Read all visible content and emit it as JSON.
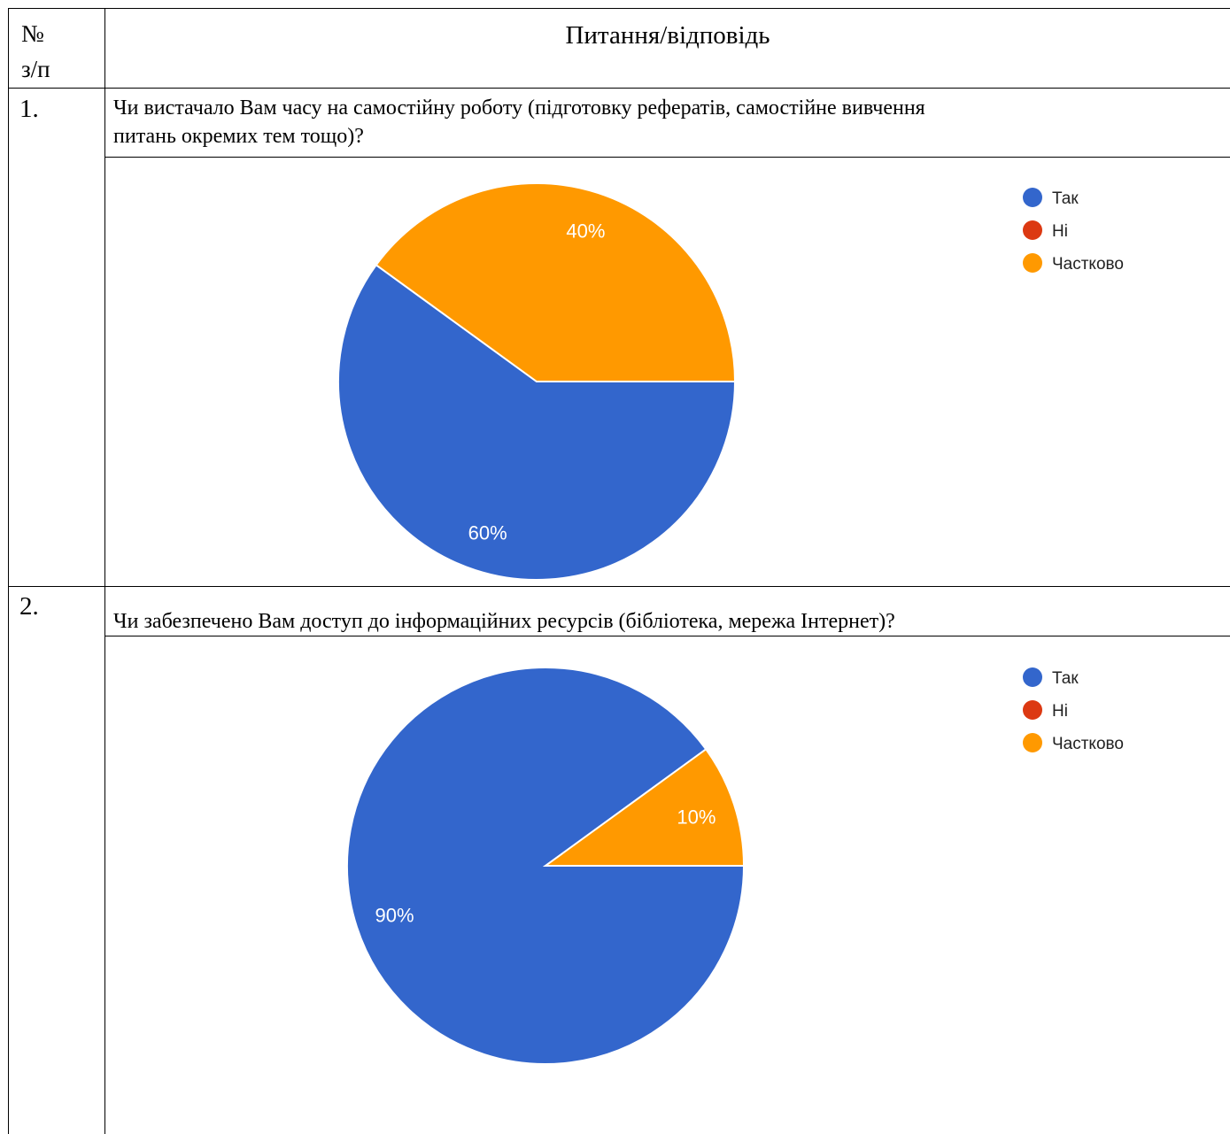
{
  "header": {
    "num_line1": "№",
    "num_line2": "з/п",
    "title": "Питання/відповідь"
  },
  "rows": [
    {
      "number": "1.",
      "question_line1": "Чи вистачало Вам часу на самостійну роботу (підготовку рефератів, самостійне вивчення",
      "question_line2": "питань окремих тем тощо)?"
    },
    {
      "number": "2.",
      "question_line1": "Чи забезпечено Вам доступ до інформаційних ресурсів (бібліотека, мережа Інтернет)?"
    }
  ],
  "colors": {
    "tak": "#3366cc",
    "ni": "#dc3912",
    "chastkovo": "#ff9900"
  },
  "chart_data": [
    {
      "type": "pie",
      "categories": [
        "Так",
        "Ні",
        "Частково"
      ],
      "values": [
        60,
        0,
        40
      ],
      "labels": [
        "60%",
        "",
        "40%"
      ],
      "colors": [
        "#3366cc",
        "#dc3912",
        "#ff9900"
      ],
      "legend": "right"
    },
    {
      "type": "pie",
      "categories": [
        "Так",
        "Ні",
        "Частково"
      ],
      "values": [
        90,
        0,
        10
      ],
      "labels": [
        "90%",
        "",
        "10%"
      ],
      "colors": [
        "#3366cc",
        "#dc3912",
        "#ff9900"
      ],
      "legend": "right"
    }
  ]
}
